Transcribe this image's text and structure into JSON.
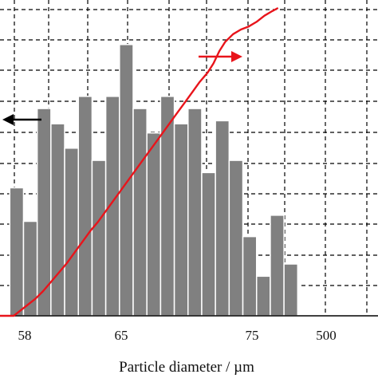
{
  "chart_data": {
    "type": "bar",
    "xlabel": "Particle diameter / µm",
    "x_tick_labels": [
      "58",
      "65",
      "75",
      "500"
    ],
    "x_range": [
      57.5,
      76.8
    ],
    "bin_width": 0.7,
    "left_axis_range": [
      0,
      90
    ],
    "right_axis_range": [
      0,
      100
    ],
    "grid": true,
    "histogram": {
      "name": "",
      "axis": "left",
      "color": "#808080",
      "bins": [
        {
          "x": 58.35,
          "value": 42
        },
        {
          "x": 59.05,
          "value": 31
        },
        {
          "x": 59.75,
          "value": 68
        },
        {
          "x": 60.45,
          "value": 63
        },
        {
          "x": 61.15,
          "value": 55
        },
        {
          "x": 61.85,
          "value": 72
        },
        {
          "x": 62.55,
          "value": 51
        },
        {
          "x": 63.25,
          "value": 72
        },
        {
          "x": 63.95,
          "value": 89
        },
        {
          "x": 64.65,
          "value": 68
        },
        {
          "x": 65.35,
          "value": 60
        },
        {
          "x": 66.05,
          "value": 72
        },
        {
          "x": 66.75,
          "value": 63
        },
        {
          "x": 67.45,
          "value": 68
        },
        {
          "x": 68.15,
          "value": 47
        },
        {
          "x": 68.85,
          "value": 64
        },
        {
          "x": 69.55,
          "value": 51
        },
        {
          "x": 70.25,
          "value": 26
        },
        {
          "x": 70.95,
          "value": 13
        },
        {
          "x": 71.65,
          "value": 33
        },
        {
          "x": 72.35,
          "value": 17
        }
      ]
    },
    "cumulative": {
      "name": "",
      "axis": "right",
      "color": "#e8141b",
      "points": [
        [
          57.0,
          0
        ],
        [
          58.2,
          0
        ],
        [
          58.5,
          1.5
        ],
        [
          58.9,
          3.5
        ],
        [
          59.3,
          5.5
        ],
        [
          59.7,
          8
        ],
        [
          60.1,
          11
        ],
        [
          60.5,
          14
        ],
        [
          60.9,
          17
        ],
        [
          61.3,
          20.5
        ],
        [
          61.7,
          24
        ],
        [
          62.1,
          27.5
        ],
        [
          62.5,
          30.5
        ],
        [
          62.9,
          34
        ],
        [
          63.3,
          37.5
        ],
        [
          63.7,
          41
        ],
        [
          64.1,
          44.5
        ],
        [
          64.5,
          48
        ],
        [
          64.9,
          51.5
        ],
        [
          65.3,
          55
        ],
        [
          65.7,
          58.5
        ],
        [
          66.1,
          62
        ],
        [
          66.5,
          65.5
        ],
        [
          66.9,
          69
        ],
        [
          67.3,
          72.5
        ],
        [
          67.7,
          76
        ],
        [
          68.1,
          79
        ],
        [
          68.4,
          82
        ],
        [
          68.7,
          86
        ],
        [
          69.0,
          89
        ],
        [
          69.4,
          91.5
        ],
        [
          69.8,
          93
        ],
        [
          70.2,
          94
        ],
        [
          70.6,
          95.5
        ],
        [
          71.0,
          97.5
        ],
        [
          71.4,
          99
        ],
        [
          71.7,
          100
        ]
      ]
    },
    "annotations": [
      {
        "type": "arrow",
        "direction": "left",
        "points_to": "left-axis",
        "color": "#000000"
      },
      {
        "type": "arrow",
        "direction": "right",
        "points_to": "right-axis",
        "color": "#e8141b"
      }
    ]
  }
}
